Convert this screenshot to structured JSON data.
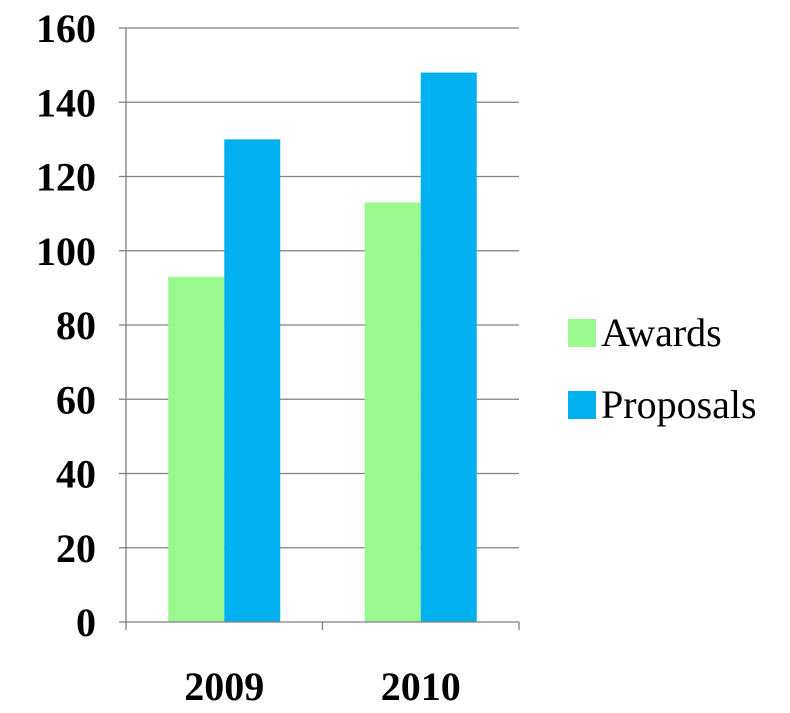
{
  "chart_data": {
    "type": "bar",
    "categories": [
      "2009",
      "2010"
    ],
    "series": [
      {
        "name": "Awards",
        "values": [
          93,
          113
        ],
        "color": "#99f98f"
      },
      {
        "name": "Proposals",
        "values": [
          130,
          148
        ],
        "color": "#00b0ef"
      }
    ],
    "ylim": [
      0,
      160
    ],
    "yticks": [
      0,
      20,
      40,
      60,
      80,
      100,
      120,
      140,
      160
    ],
    "grid": true,
    "legend": "right"
  }
}
